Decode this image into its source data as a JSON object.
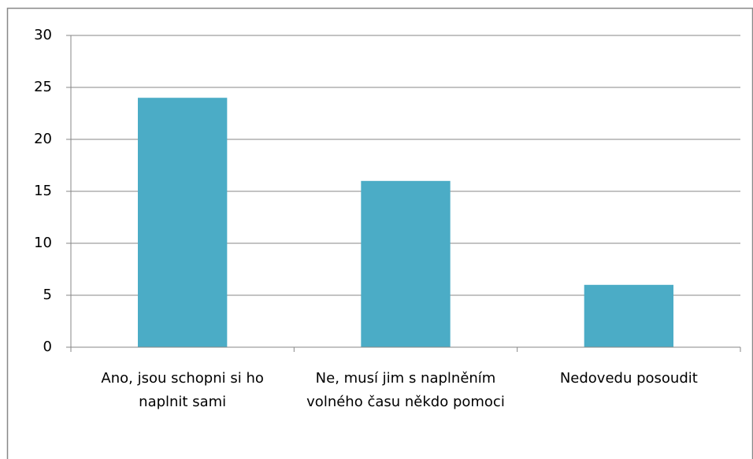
{
  "chart_data": {
    "type": "bar",
    "categories": [
      "Ano, jsou schopni si ho naplnit sami",
      "Ne, musí jim s naplněním volného času někdo pomoci",
      "Nedovedu posoudit"
    ],
    "values": [
      24,
      16,
      6
    ],
    "color": "#4bacc6",
    "ylim": [
      0,
      30
    ],
    "yticks": [
      0,
      5,
      10,
      15,
      20,
      25,
      30
    ],
    "grid": true
  }
}
